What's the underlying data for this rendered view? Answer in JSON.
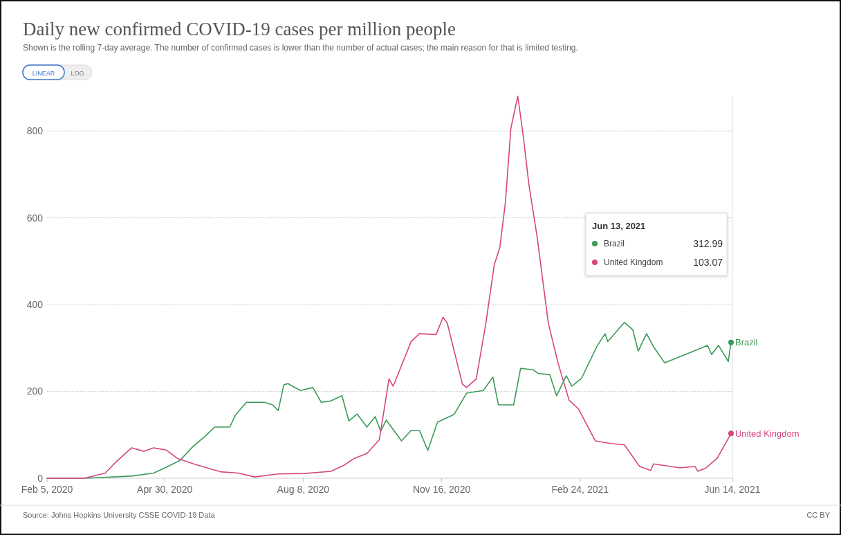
{
  "chart_data": {
    "type": "line",
    "title": "Daily new confirmed COVID-19 cases per million people",
    "subtitle": "Shown is the rolling 7-day average. The number of confirmed cases is lower than the number of actual cases; the main reason for that is limited testing.",
    "annotations": [
      "Source: Johns Hopkins University CSSE COVID-19 Data",
      "CC BY",
      "LINEAR",
      "LOG",
      "Jun 13, 2021",
      "312.99",
      "103.07"
    ],
    "xlim": [
      "2020-02-05",
      "2021-06-14"
    ],
    "xticks": [
      {
        "value": "2020-02-05",
        "label": "Feb 5, 2020"
      },
      {
        "value": "2020-04-30",
        "label": "Apr 30, 2020"
      },
      {
        "value": "2020-08-08",
        "label": "Aug 8, 2020"
      },
      {
        "value": "2020-11-16",
        "label": "Nov 16, 2020"
      },
      {
        "value": "2021-02-24",
        "label": "Feb 24, 2021"
      },
      {
        "value": "2021-06-14",
        "label": "Jun 14, 2021"
      }
    ],
    "ylim": [
      0,
      880
    ],
    "yticks": [
      0,
      200,
      400,
      600,
      800
    ],
    "grid": "y",
    "legend": "right",
    "series": [
      {
        "name": "Brazil",
        "color": "#3a9a58",
        "x": [
          "2020-02-05",
          "2020-03-03",
          "2020-04-06",
          "2020-04-22",
          "2020-05-01",
          "2020-05-11",
          "2020-05-20",
          "2020-05-30",
          "2020-06-05",
          "2020-06-16",
          "2020-06-20",
          "2020-06-28",
          "2020-07-11",
          "2020-07-17",
          "2020-07-21",
          "2020-07-25",
          "2020-07-28",
          "2020-08-06",
          "2020-08-15",
          "2020-08-21",
          "2020-08-28",
          "2020-09-05",
          "2020-09-10",
          "2020-09-16",
          "2020-09-23",
          "2020-09-29",
          "2020-10-03",
          "2020-10-07",
          "2020-10-18",
          "2020-10-25",
          "2020-10-31",
          "2020-11-06",
          "2020-11-13",
          "2020-11-25",
          "2020-12-04",
          "2020-12-16",
          "2020-12-23",
          "2020-12-27",
          "2021-01-07",
          "2021-01-12",
          "2021-01-21",
          "2021-01-25",
          "2021-02-02",
          "2021-02-07",
          "2021-02-14",
          "2021-02-18",
          "2021-02-25",
          "2021-03-08",
          "2021-03-14",
          "2021-03-16",
          "2021-03-28",
          "2021-04-03",
          "2021-04-07",
          "2021-04-13",
          "2021-04-18",
          "2021-04-26",
          "2021-05-11",
          "2021-05-27",
          "2021-05-30",
          "2021-06-04",
          "2021-06-11",
          "2021-06-13"
        ],
        "values": [
          0,
          0,
          5,
          12,
          25,
          41,
          72,
          99,
          118,
          118,
          145,
          175,
          175,
          169,
          156,
          215,
          218,
          202,
          209,
          175,
          178,
          190,
          132,
          148,
          118,
          142,
          108,
          134,
          86,
          110,
          110,
          64,
          129,
          147,
          196,
          202,
          233,
          169,
          169,
          253,
          250,
          241,
          239,
          190,
          236,
          212,
          230,
          303,
          333,
          315,
          359,
          342,
          293,
          333,
          303,
          266,
          285,
          306,
          285,
          306,
          269,
          312.99
        ]
      },
      {
        "name": "United Kingdom",
        "color": "#d6457f",
        "x": [
          "2020-02-05",
          "2020-03-03",
          "2020-03-18",
          "2020-03-26",
          "2020-04-06",
          "2020-04-15",
          "2020-04-22",
          "2020-05-01",
          "2020-05-09",
          "2020-05-22",
          "2020-06-09",
          "2020-06-22",
          "2020-07-04",
          "2020-07-21",
          "2020-08-09",
          "2020-08-28",
          "2020-09-06",
          "2020-09-14",
          "2020-09-23",
          "2020-10-02",
          "2020-10-09",
          "2020-10-12",
          "2020-10-25",
          "2020-10-31",
          "2020-11-12",
          "2020-11-17",
          "2020-11-20",
          "2020-12-01",
          "2020-12-04",
          "2020-12-11",
          "2020-12-18",
          "2020-12-24",
          "2020-12-28",
          "2021-01-01",
          "2021-01-05",
          "2021-01-10",
          "2021-01-14",
          "2021-01-18",
          "2021-01-24",
          "2021-02-01",
          "2021-02-08",
          "2021-02-16",
          "2021-02-23",
          "2021-03-07",
          "2021-03-18",
          "2021-03-28",
          "2021-04-08",
          "2021-04-16",
          "2021-04-18",
          "2021-05-07",
          "2021-05-18",
          "2021-05-20",
          "2021-05-26",
          "2021-06-03",
          "2021-06-13"
        ],
        "values": [
          0,
          0,
          12,
          38,
          70,
          62,
          70,
          65,
          46,
          32,
          15,
          12,
          3,
          10,
          11,
          16,
          29,
          46,
          57,
          89,
          229,
          212,
          315,
          333,
          331,
          371,
          358,
          217,
          209,
          229,
          358,
          492,
          531,
          634,
          806,
          880,
          787,
          677,
          555,
          358,
          266,
          180,
          159,
          86,
          80,
          77,
          27,
          18,
          33,
          24,
          27,
          16,
          24,
          46,
          103.07
        ]
      }
    ]
  }
}
